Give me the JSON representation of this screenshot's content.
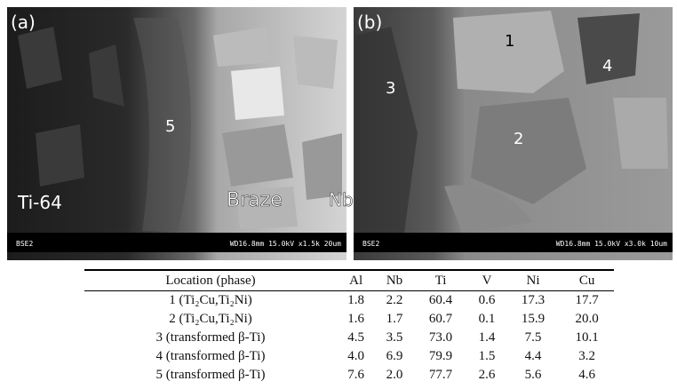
{
  "panels": [
    {
      "label": "(a)",
      "phases": [
        "Ti-64",
        "5",
        "Braze",
        "Nb"
      ],
      "detector": "BSE2",
      "info": "WD16.8mm 15.0kV x1.5k  20um"
    },
    {
      "label": "(b)",
      "phases": [
        "1",
        "2",
        "3",
        "4"
      ],
      "detector": "BSE2",
      "info": "WD16.8mm 15.0kV x3.0k  10um"
    }
  ],
  "table": {
    "header": [
      "Location (phase)",
      "Al",
      "Nb",
      "Ti",
      "V",
      "Ni",
      "Cu"
    ],
    "rows": [
      [
        "1 (Ti₂Cu,Ti₂Ni)",
        "1.8",
        "2.2",
        "60.4",
        "0.6",
        "17.3",
        "17.7"
      ],
      [
        "2 (Ti₂Cu,Ti₂Ni)",
        "1.6",
        "1.7",
        "60.7",
        "0.1",
        "15.9",
        "20.0"
      ],
      [
        "3 (transformed β-Ti)",
        "4.5",
        "3.5",
        "73.0",
        "1.4",
        "7.5",
        "10.1"
      ],
      [
        "4 (transformed β-Ti)",
        "4.0",
        "6.9",
        "79.9",
        "1.5",
        "4.4",
        "3.2"
      ],
      [
        "5 (transformed β-Ti)",
        "7.6",
        "2.0",
        "77.7",
        "2.6",
        "5.6",
        "4.6"
      ]
    ]
  }
}
